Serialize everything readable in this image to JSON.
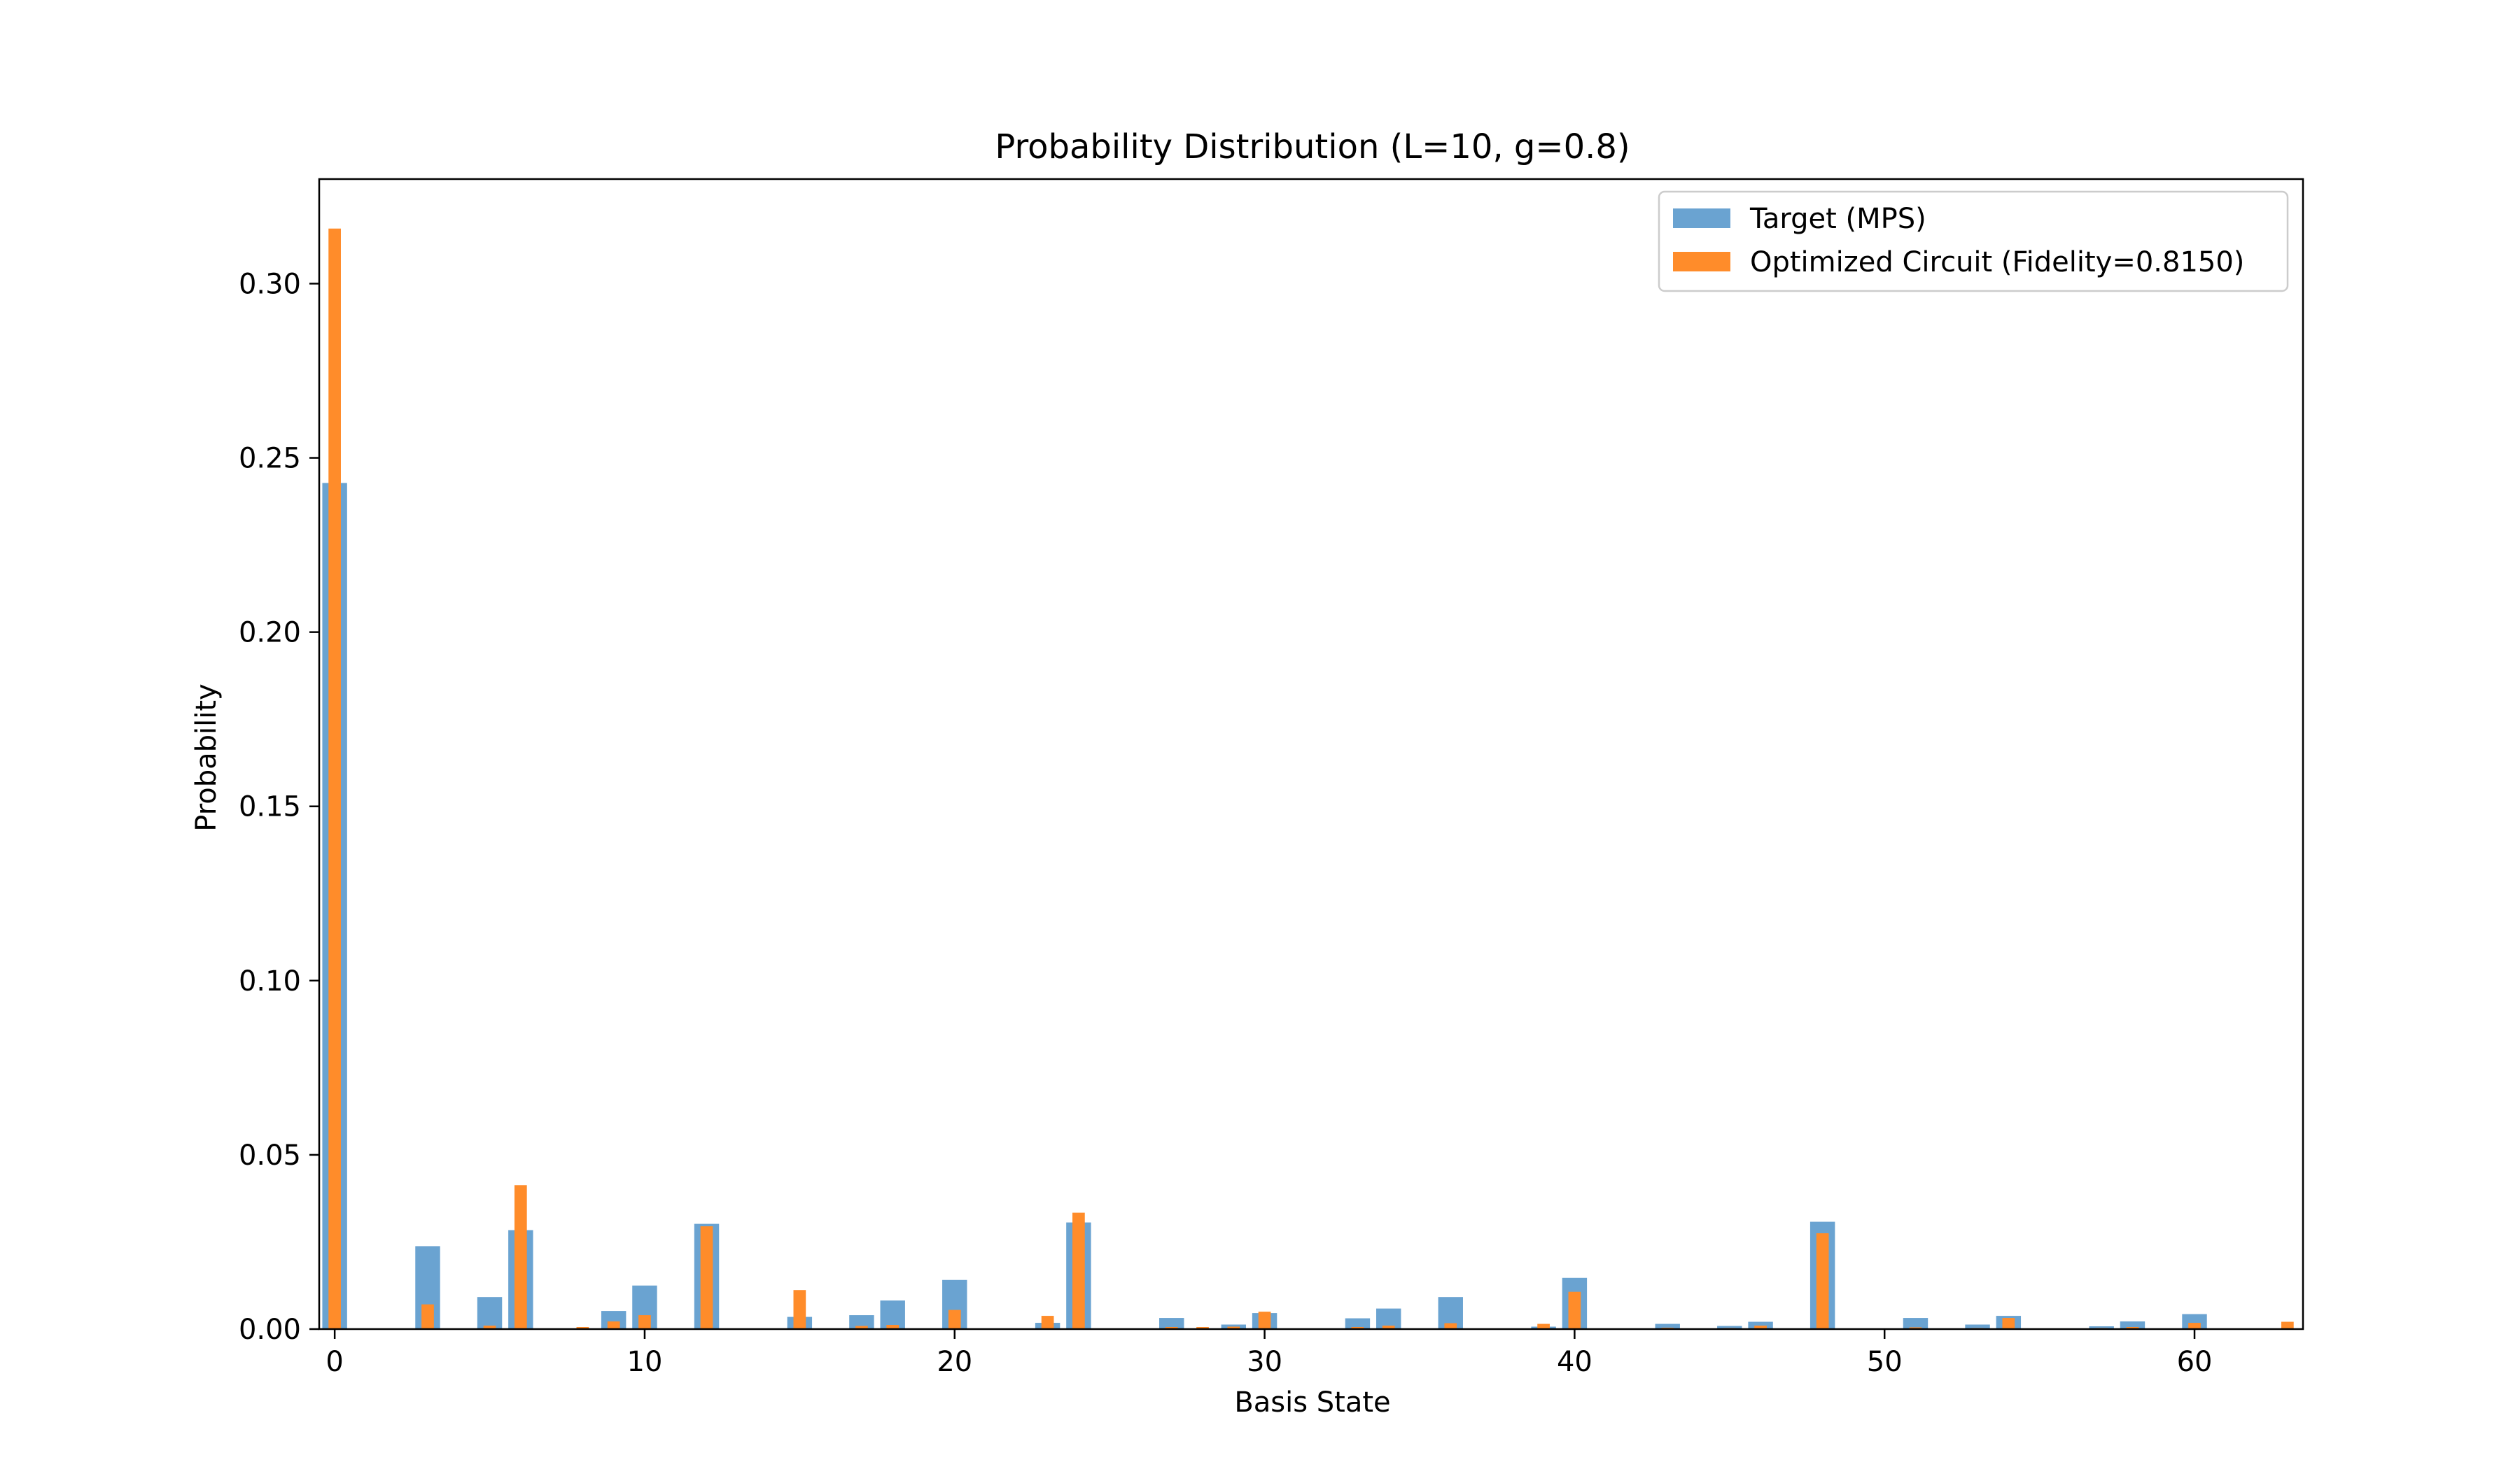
{
  "chart_data": {
    "type": "bar",
    "title": "Probability Distribution (L=10, g=0.8)",
    "xlabel": "Basis State",
    "ylabel": "Probability",
    "xlim": [
      -0.5,
      63.5
    ],
    "ylim": [
      0,
      0.33
    ],
    "xticks": [
      0,
      10,
      20,
      30,
      40,
      50,
      60
    ],
    "yticks": [
      0.0,
      0.05,
      0.1,
      0.15,
      0.2,
      0.25,
      0.3
    ],
    "grid": false,
    "legend_position": "top-right",
    "series": [
      {
        "name": "Target (MPS)",
        "color": "#6aa3d1",
        "values": [
          0.2428,
          0,
          0,
          0.0238,
          0,
          0.0092,
          0.0284,
          0,
          0,
          0.0052,
          0.0125,
          0,
          0.0302,
          0,
          0,
          0.0035,
          0,
          0.004,
          0.0082,
          0,
          0.0141,
          0,
          0,
          0.0018,
          0.0306,
          0,
          0,
          0.0032,
          0,
          0.0013,
          0.0046,
          0,
          0,
          0.0031,
          0.0059,
          0,
          0.0092,
          0,
          0,
          0.0007,
          0.0147,
          0,
          0,
          0.0015,
          0,
          0.0009,
          0.0021,
          0,
          0.0308,
          0,
          0,
          0.0032,
          0,
          0.0013,
          0.0038,
          0,
          0,
          0.0008,
          0.0022,
          0,
          0.0043,
          0,
          0,
          0.0002
        ]
      },
      {
        "name": "Optimized Circuit (Fidelity=0.8150)",
        "color": "#ff8c2a",
        "values": [
          0.3158,
          0,
          0,
          0.0071,
          0,
          0.001,
          0.0413,
          0,
          0.0006,
          0.0022,
          0.004,
          0,
          0.0295,
          0,
          0,
          0.0112,
          0,
          0.0009,
          0.0012,
          0,
          0.0055,
          0,
          0,
          0.0038,
          0.0334,
          0,
          0,
          0.0006,
          0.0006,
          0.0007,
          0.005,
          0,
          0,
          0.0006,
          0.001,
          0,
          0.0017,
          0,
          0,
          0.0015,
          0.0107,
          0,
          0,
          0.0004,
          0,
          0.0003,
          0.001,
          0,
          0.0275,
          0,
          0,
          0.0005,
          0,
          0.0003,
          0.0032,
          0,
          0,
          0.0003,
          0.0006,
          0,
          0.0018,
          0,
          0,
          0.0021
        ]
      }
    ]
  }
}
